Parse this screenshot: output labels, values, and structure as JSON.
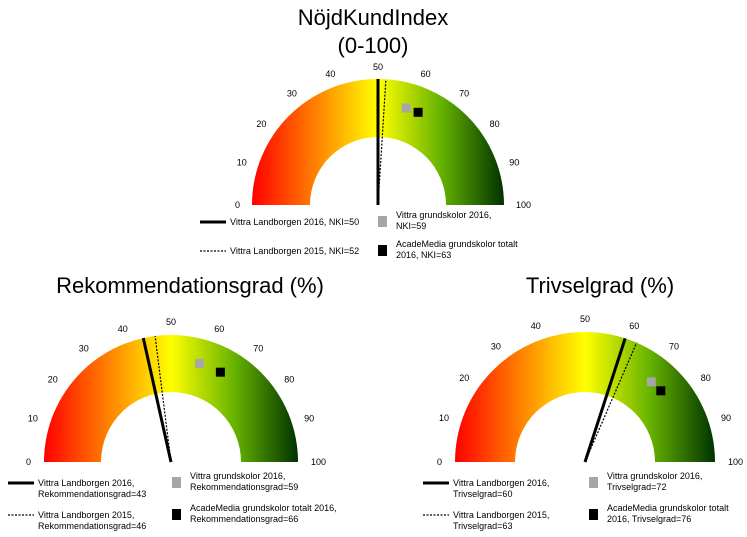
{
  "chart_data": [
    {
      "type": "gauge",
      "title_line1": "NöjdKundIndex",
      "title_line2": "(0-100)",
      "range": [
        0,
        100
      ],
      "ticks": [
        0,
        10,
        20,
        30,
        40,
        50,
        60,
        70,
        80,
        90,
        100
      ],
      "tick_labels": [
        "0",
        "10",
        "20",
        "30",
        "40",
        "50",
        "60",
        "70",
        "80",
        "90",
        "100"
      ],
      "needles": [
        {
          "label": "Vittra Landborgen 2016, NKI=50",
          "value": 50,
          "style": "solid"
        },
        {
          "label": "Vittra Landborgen 2015, NKI=52",
          "value": 52,
          "style": "dotted"
        }
      ],
      "markers": [
        {
          "label_lines": [
            "Vittra grundskolor 2016,",
            "NKI=59"
          ],
          "value": 59,
          "color": "#a6a6a6"
        },
        {
          "label_lines": [
            "AcadeMedia grundskolor totalt",
            "2016, NKI=63"
          ],
          "value": 63,
          "color": "#000000"
        }
      ]
    },
    {
      "type": "gauge",
      "title_line1": "Rekommendationsgrad (%)",
      "range": [
        0,
        100
      ],
      "ticks": [
        0,
        10,
        20,
        30,
        40,
        50,
        60,
        70,
        80,
        90,
        100
      ],
      "tick_labels": [
        "0",
        "10",
        "20",
        "30",
        "40",
        "50",
        "60",
        "70",
        "80",
        "90",
        "100"
      ],
      "needles": [
        {
          "label_lines": [
            "Vittra Landborgen 2016,",
            "Rekommendationsgrad=43"
          ],
          "value": 43,
          "style": "solid"
        },
        {
          "label_lines": [
            "Vittra Landborgen 2015,",
            "Rekommendationsgrad=46"
          ],
          "value": 46,
          "style": "dotted"
        }
      ],
      "markers": [
        {
          "label_lines": [
            "Vittra grundskolor 2016,",
            "Rekommendationsgrad=59"
          ],
          "value": 59,
          "color": "#a6a6a6"
        },
        {
          "label_lines": [
            "AcadeMedia grundskolor totalt 2016,",
            "Rekommendationsgrad=66"
          ],
          "value": 66,
          "color": "#000000"
        }
      ]
    },
    {
      "type": "gauge",
      "title_line1": "Trivselgrad (%)",
      "range": [
        0,
        100
      ],
      "ticks": [
        0,
        10,
        20,
        30,
        40,
        50,
        60,
        70,
        80,
        90,
        100
      ],
      "tick_labels": [
        "0",
        "10",
        "20",
        "30",
        "40",
        "50",
        "60",
        "70",
        "80",
        "90",
        "100"
      ],
      "needles": [
        {
          "label_lines": [
            "Vittra Landborgen 2016,",
            "Trivselgrad=60"
          ],
          "value": 60,
          "style": "solid"
        },
        {
          "label_lines": [
            "Vittra Landborgen 2015,",
            "Trivselgrad=63"
          ],
          "value": 63,
          "style": "dotted"
        }
      ],
      "markers": [
        {
          "label_lines": [
            "Vittra grundskolor 2016,",
            "Trivselgrad=72"
          ],
          "value": 72,
          "color": "#a6a6a6"
        },
        {
          "label_lines": [
            "AcadeMedia grundskolor totalt",
            "2016, Trivselgrad=76"
          ],
          "value": 76,
          "color": "#000000"
        }
      ]
    }
  ],
  "colors": {
    "scale_low": "#ff0000",
    "scale_mid_low": "#ff8000",
    "scale_mid": "#ffff00",
    "scale_mid_high": "#66b300",
    "scale_high": "#003300"
  }
}
